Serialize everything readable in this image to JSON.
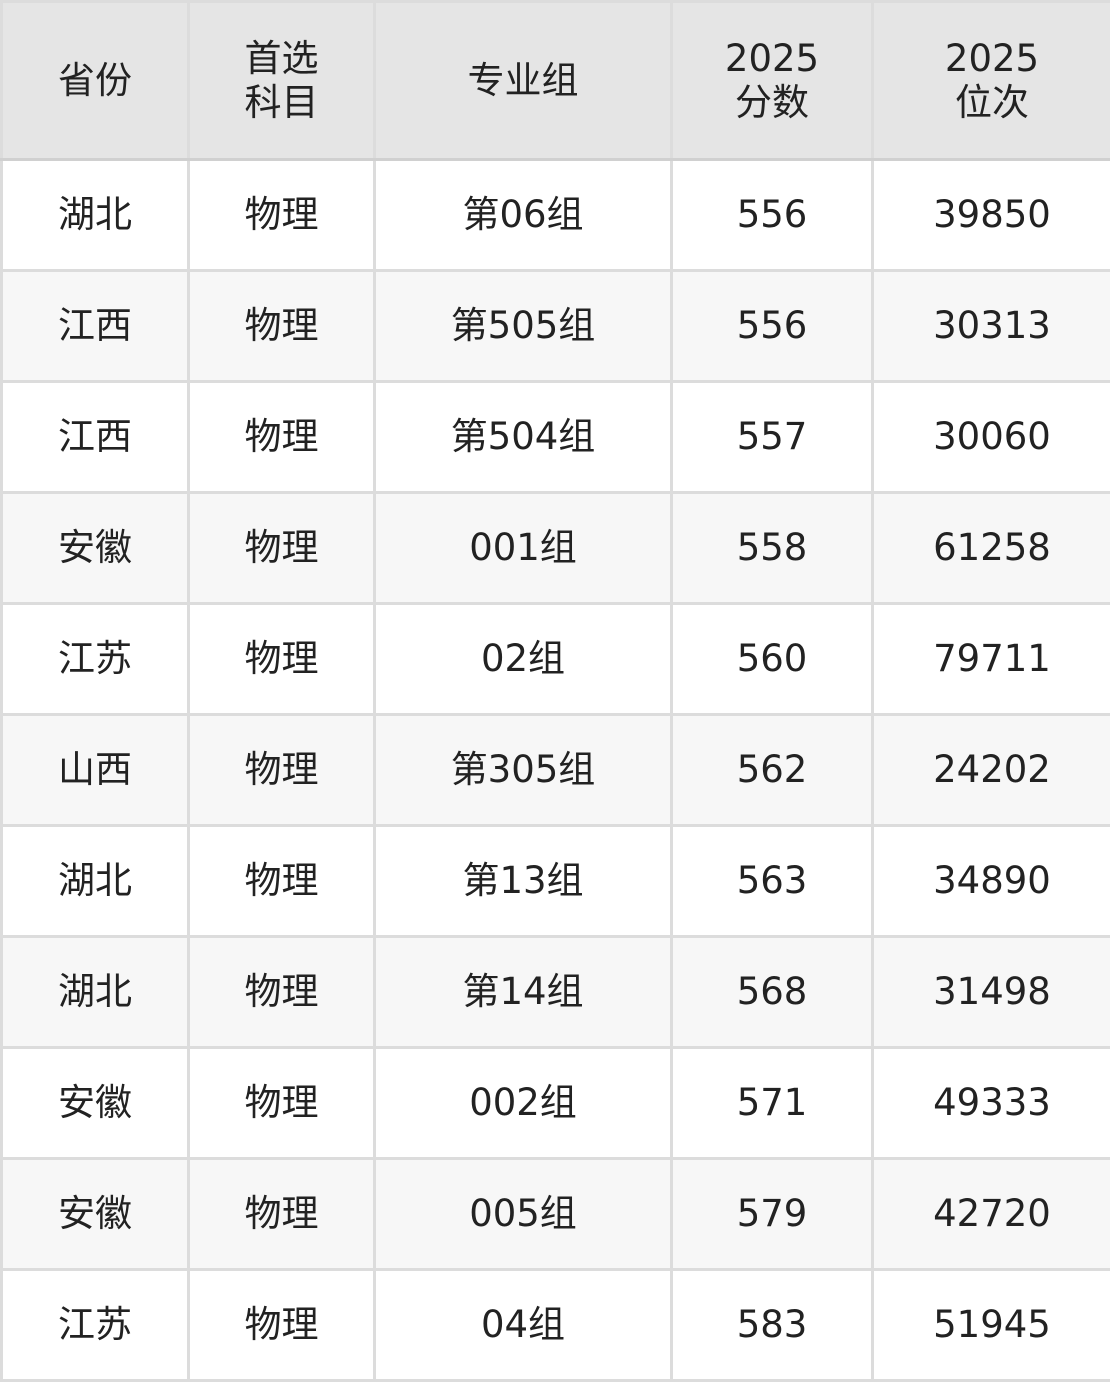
{
  "table": {
    "headers": [
      "省份",
      "首选\n科目",
      "专业组",
      "2025\n分数",
      "2025\n位次"
    ],
    "rows": [
      [
        "湖北",
        "物理",
        "第06组",
        "556",
        "39850"
      ],
      [
        "江西",
        "物理",
        "第505组",
        "556",
        "30313"
      ],
      [
        "江西",
        "物理",
        "第504组",
        "557",
        "30060"
      ],
      [
        "安徽",
        "物理",
        "001组",
        "558",
        "61258"
      ],
      [
        "江苏",
        "物理",
        "02组",
        "560",
        "79711"
      ],
      [
        "山西",
        "物理",
        "第305组",
        "562",
        "24202"
      ],
      [
        "湖北",
        "物理",
        "第13组",
        "563",
        "34890"
      ],
      [
        "湖北",
        "物理",
        "第14组",
        "568",
        "31498"
      ],
      [
        "安徽",
        "物理",
        "002组",
        "571",
        "49333"
      ],
      [
        "安徽",
        "物理",
        "005组",
        "579",
        "42720"
      ],
      [
        "江苏",
        "物理",
        "04组",
        "583",
        "51945"
      ]
    ]
  },
  "colors": {
    "header_bg": "#e5e5e5",
    "alt_row_bg": "#f7f7f7",
    "border": "#dcdcdc",
    "text": "#222222"
  }
}
